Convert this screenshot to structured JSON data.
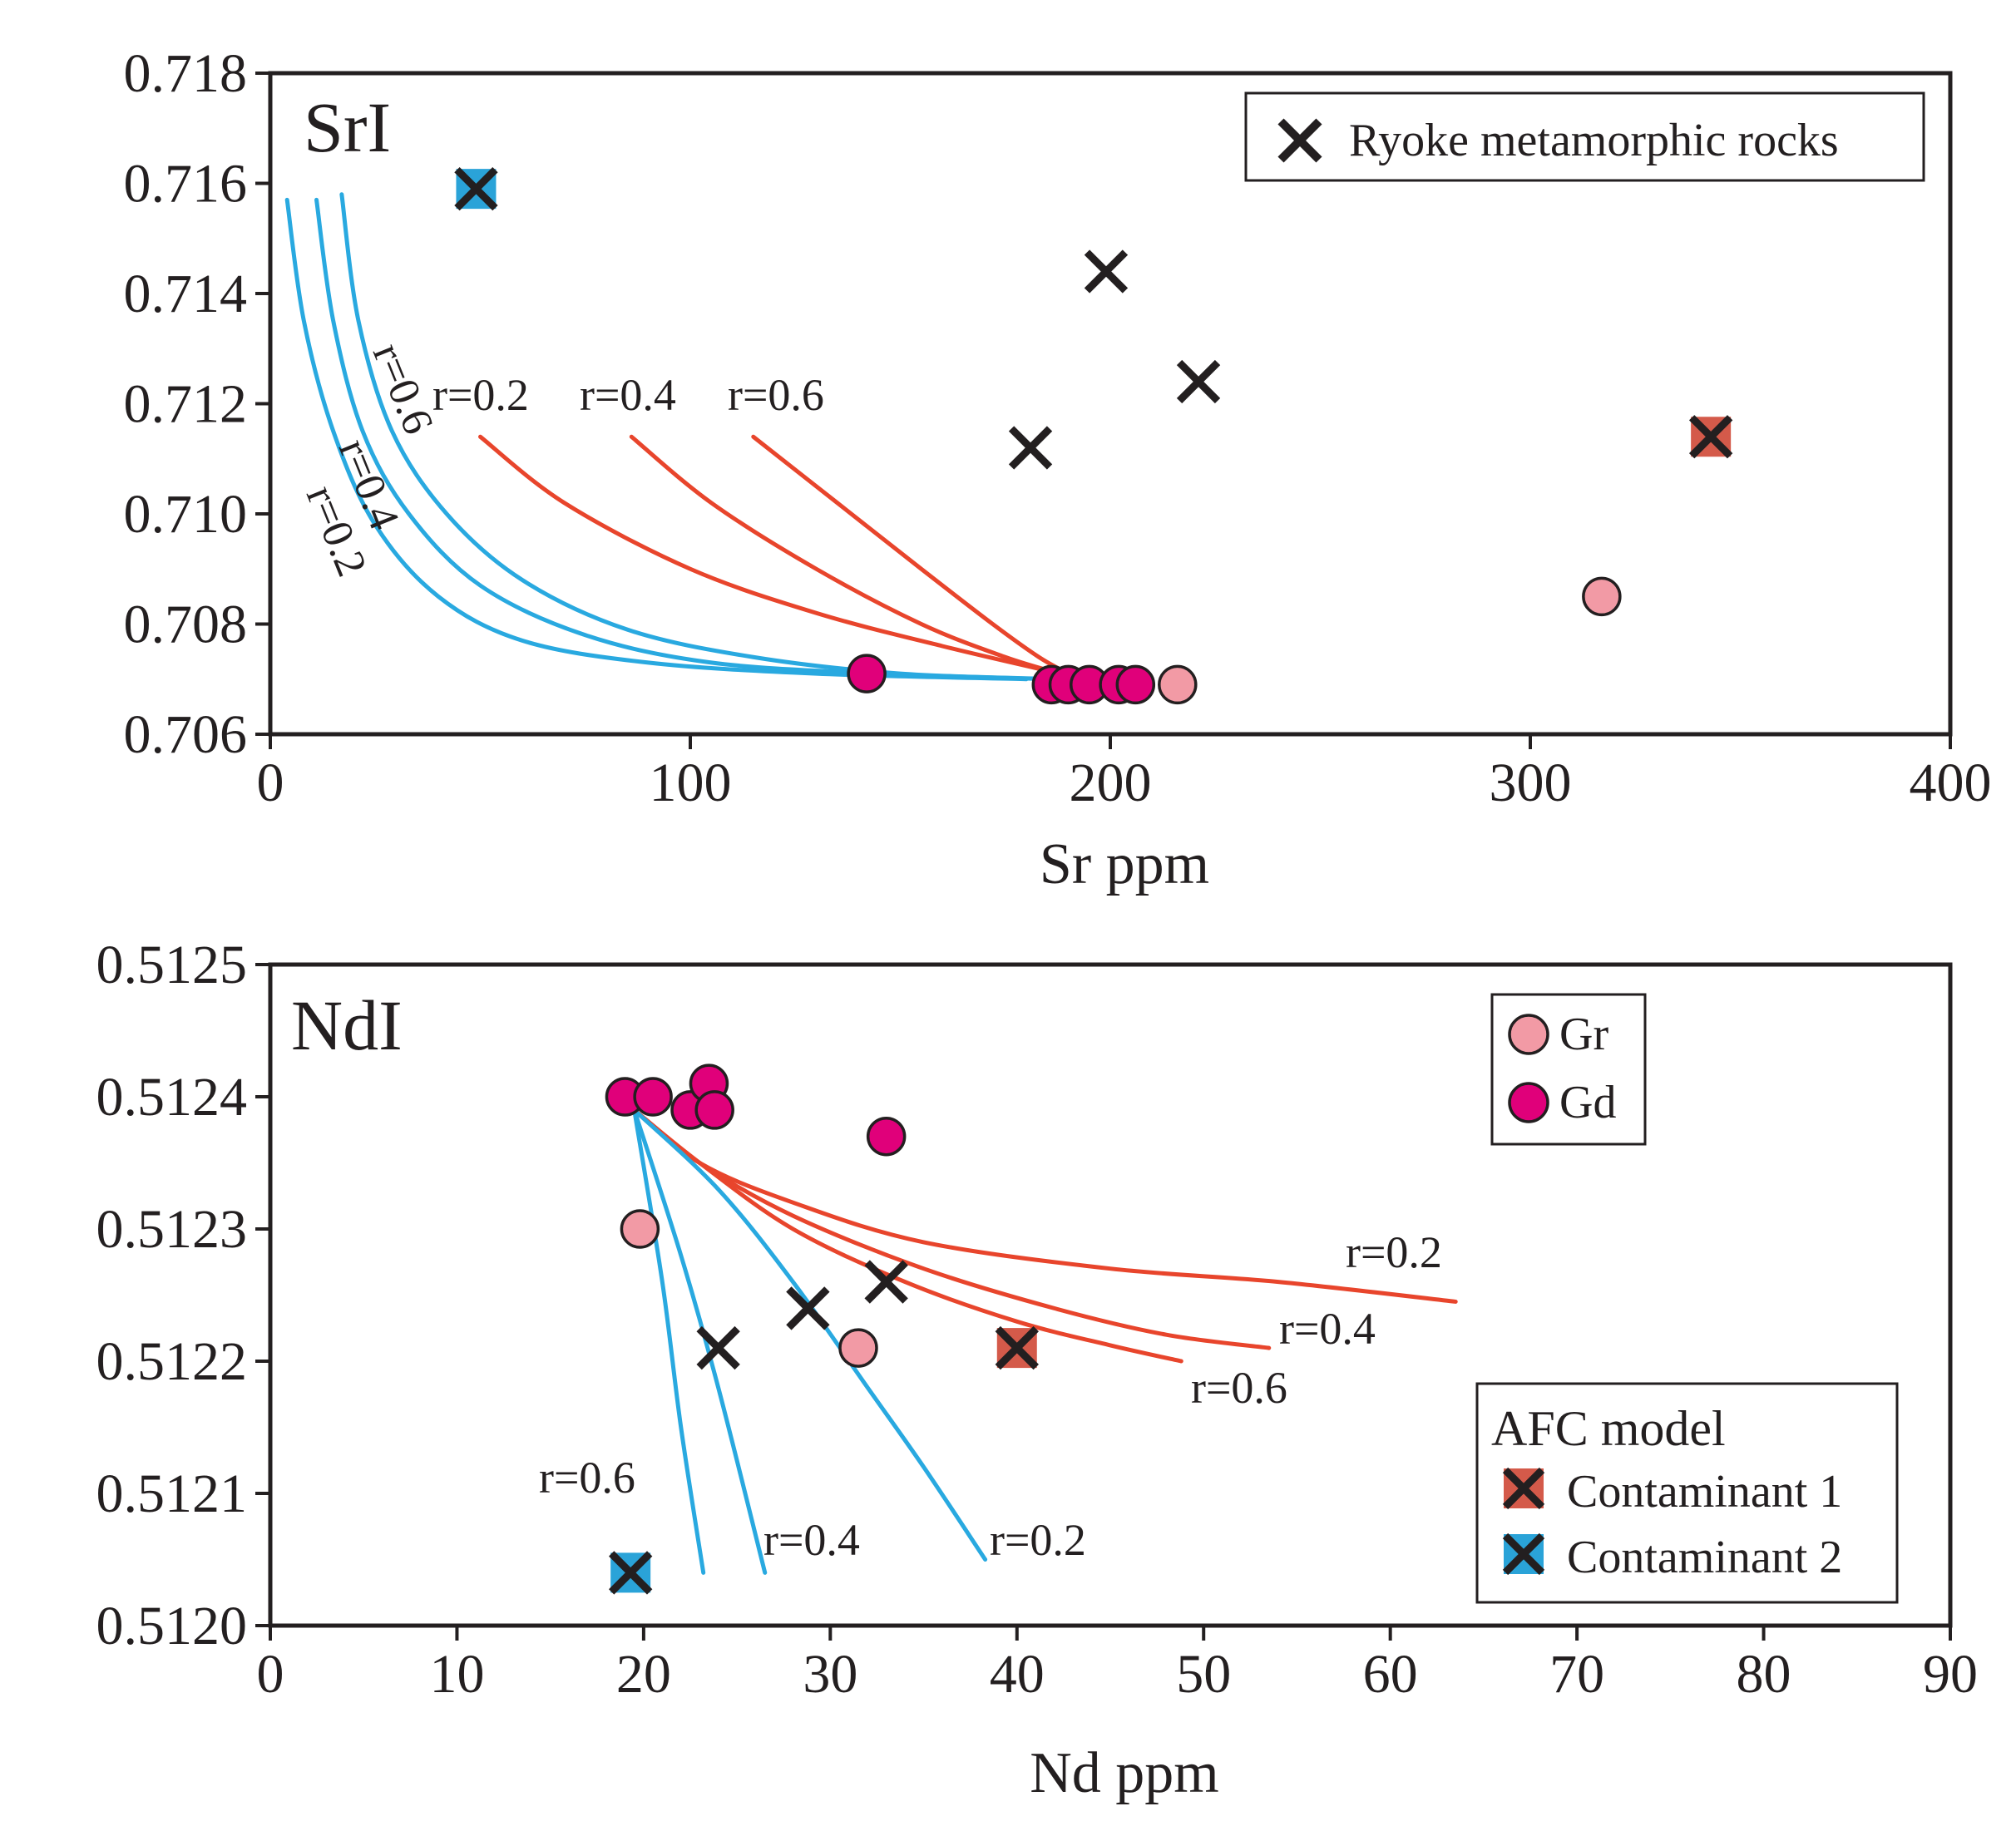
{
  "colors": {
    "axis": "#231f20",
    "gd_fill": "#e0007a",
    "gr_fill": "#f29aa5",
    "afc_red": "#e8452c",
    "afc_blue": "#29a9e0",
    "contaminant1_fill": "#d45a4a",
    "contaminant2_fill": "#2aa3d8",
    "cross": "#231f20"
  },
  "chart_data": [
    {
      "id": "sr",
      "type": "scatter",
      "title": "SrI",
      "xlabel": "Sr ppm",
      "ylabel": "",
      "xlim": [
        0,
        400
      ],
      "ylim": [
        0.706,
        0.718
      ],
      "xticks": [
        0,
        100,
        200,
        300,
        400
      ],
      "xtick_labels": [
        "0",
        "100",
        "200",
        "300",
        "400"
      ],
      "yticks": [
        0.706,
        0.708,
        0.71,
        0.712,
        0.714,
        0.716,
        0.718
      ],
      "ytick_labels": [
        "0.706",
        "0.708",
        "0.710",
        "0.712",
        "0.714",
        "0.716",
        "0.718"
      ],
      "legend": {
        "position": "top-right",
        "entries": [
          "Ryoke metamorphic rocks"
        ]
      },
      "series": [
        {
          "name": "Gd",
          "marker": "circle",
          "color": "#e0007a",
          "points": [
            [
              142,
              0.7071
            ],
            [
              186,
              0.7069
            ],
            [
              190,
              0.7069
            ],
            [
              195,
              0.7069
            ],
            [
              202,
              0.7069
            ],
            [
              206,
              0.7069
            ]
          ]
        },
        {
          "name": "Gr",
          "marker": "circle",
          "color": "#f29aa5",
          "points": [
            [
              216,
              0.7069
            ],
            [
              317,
              0.7085
            ]
          ]
        },
        {
          "name": "Ryoke metamorphic rocks",
          "marker": "x",
          "points": [
            [
              199,
              0.7144
            ],
            [
              221,
              0.7124
            ],
            [
              181,
              0.7112
            ]
          ]
        },
        {
          "name": "Contaminant 1",
          "marker": "x-square",
          "color": "#d45a4a",
          "points": [
            [
              343,
              0.7114
            ]
          ]
        },
        {
          "name": "Contaminant 2",
          "marker": "x-square",
          "color": "#2aa3d8",
          "points": [
            [
              49,
              0.7159
            ]
          ]
        }
      ],
      "curves": [
        {
          "label": "r=0.2",
          "contaminant": 1,
          "color": "#e8452c",
          "points": [
            [
              50,
              0.7114
            ],
            [
              70,
              0.7102
            ],
            [
              100,
              0.709
            ],
            [
              130,
              0.7082
            ],
            [
              160,
              0.7076
            ],
            [
              188,
              0.7071
            ]
          ]
        },
        {
          "label": "r=0.4",
          "contaminant": 1,
          "color": "#e8452c",
          "points": [
            [
              86,
              0.7114
            ],
            [
              105,
              0.7102
            ],
            [
              130,
              0.709
            ],
            [
              155,
              0.708
            ],
            [
              175,
              0.7074
            ],
            [
              188,
              0.7071
            ]
          ]
        },
        {
          "label": "r=0.6",
          "contaminant": 1,
          "color": "#e8452c",
          "points": [
            [
              115,
              0.7114
            ],
            [
              135,
              0.7102
            ],
            [
              155,
              0.709
            ],
            [
              172,
              0.708
            ],
            [
              183,
              0.7074
            ],
            [
              190,
              0.7071
            ]
          ]
        },
        {
          "label": "r=0.2",
          "contaminant": 2,
          "color": "#29a9e0",
          "points": [
            [
              4,
              0.7157
            ],
            [
              8,
              0.7135
            ],
            [
              15,
              0.7115
            ],
            [
              25,
              0.7098
            ],
            [
              40,
              0.7085
            ],
            [
              60,
              0.7077
            ],
            [
              90,
              0.7073
            ],
            [
              130,
              0.7071
            ],
            [
              180,
              0.707
            ]
          ]
        },
        {
          "label": "r=0.4",
          "contaminant": 2,
          "color": "#29a9e0",
          "points": [
            [
              11,
              0.7157
            ],
            [
              15,
              0.7135
            ],
            [
              22,
              0.7115
            ],
            [
              33,
              0.71
            ],
            [
              50,
              0.7087
            ],
            [
              75,
              0.7078
            ],
            [
              105,
              0.7073
            ],
            [
              145,
              0.7071
            ],
            [
              185,
              0.707
            ]
          ]
        },
        {
          "label": "r=0.6",
          "contaminant": 2,
          "color": "#29a9e0",
          "points": [
            [
              17,
              0.7158
            ],
            [
              21,
              0.7135
            ],
            [
              29,
              0.7115
            ],
            [
              42,
              0.71
            ],
            [
              60,
              0.7088
            ],
            [
              85,
              0.7079
            ],
            [
              115,
              0.7074
            ],
            [
              150,
              0.7071
            ],
            [
              188,
              0.707
            ]
          ]
        }
      ],
      "annotations": [
        "r=0.2",
        "r=0.4",
        "r=0.6",
        "r=0.6",
        "r=0.4",
        "r=0.2"
      ]
    },
    {
      "id": "nd",
      "type": "scatter",
      "title": "NdI",
      "xlabel": "Nd ppm",
      "ylabel": "",
      "xlim": [
        0,
        90
      ],
      "ylim": [
        0.512,
        0.5125
      ],
      "xticks": [
        0,
        10,
        20,
        30,
        40,
        50,
        60,
        70,
        80,
        90
      ],
      "xtick_labels": [
        "0",
        "10",
        "20",
        "30",
        "40",
        "50",
        "60",
        "70",
        "80",
        "90"
      ],
      "yticks": [
        0.512,
        0.5121,
        0.5122,
        0.5123,
        0.5124,
        0.5125
      ],
      "ytick_labels": [
        "0.5120",
        "0.5121",
        "0.5122",
        "0.5123",
        "0.5124",
        "0.5125"
      ],
      "legend": {
        "position": "top-right",
        "entries": [
          "Gr",
          "Gd"
        ],
        "afc_title": "AFC model",
        "afc_entries": [
          "Contaminant 1",
          "Contaminant 2"
        ]
      },
      "series": [
        {
          "name": "Gd",
          "marker": "circle",
          "color": "#e0007a",
          "points": [
            [
              19.0,
              0.5124
            ],
            [
              20.5,
              0.5124
            ],
            [
              22.5,
              0.51239
            ],
            [
              23.5,
              0.51241
            ],
            [
              23.8,
              0.51239
            ],
            [
              33.0,
              0.51237
            ]
          ]
        },
        {
          "name": "Gr",
          "marker": "circle",
          "color": "#f29aa5",
          "points": [
            [
              19.8,
              0.5123
            ],
            [
              31.5,
              0.51221
            ]
          ]
        },
        {
          "name": "Ryoke metamorphic rocks",
          "marker": "x",
          "points": [
            [
              24.0,
              0.51221
            ],
            [
              28.8,
              0.51224
            ],
            [
              33.0,
              0.51226
            ]
          ]
        },
        {
          "name": "Contaminant 1",
          "marker": "x-square",
          "color": "#d45a4a",
          "points": [
            [
              40.0,
              0.51221
            ]
          ]
        },
        {
          "name": "Contaminant 2",
          "marker": "x-square",
          "color": "#2aa3d8",
          "points": [
            [
              19.3,
              0.51204
            ]
          ]
        }
      ],
      "curves": [
        {
          "label": "r=0.2",
          "contaminant": 1,
          "color": "#e8452c",
          "points": [
            [
              19.5,
              0.51239
            ],
            [
              23,
              0.51235
            ],
            [
              28,
              0.51232
            ],
            [
              35,
              0.51229
            ],
            [
              45,
              0.51227
            ],
            [
              54,
              0.51226
            ],
            [
              63.5,
              0.512245
            ]
          ]
        },
        {
          "label": "r=0.4",
          "contaminant": 1,
          "color": "#e8452c",
          "points": [
            [
              19.5,
              0.51239
            ],
            [
              23,
              0.51235
            ],
            [
              28,
              0.51231
            ],
            [
              35,
              0.51227
            ],
            [
              42,
              0.51224
            ],
            [
              48,
              0.51222
            ],
            [
              53.5,
              0.51221
            ]
          ]
        },
        {
          "label": "r=0.6",
          "contaminant": 1,
          "color": "#e8452c",
          "points": [
            [
              19.5,
              0.51239
            ],
            [
              23,
              0.51235
            ],
            [
              28,
              0.5123
            ],
            [
              34,
              0.51226
            ],
            [
              40,
              0.51223
            ],
            [
              45,
              0.512212
            ],
            [
              48.8,
              0.5122
            ]
          ]
        },
        {
          "label": "r=0.2",
          "contaminant": 2,
          "color": "#29a9e0",
          "points": [
            [
              19.5,
              0.51239
            ],
            [
              24,
              0.51233
            ],
            [
              28,
              0.51226
            ],
            [
              32,
              0.51218
            ],
            [
              35,
              0.51212
            ],
            [
              38.3,
              0.51205
            ]
          ]
        },
        {
          "label": "r=0.4",
          "contaminant": 2,
          "color": "#29a9e0",
          "points": [
            [
              19.5,
              0.51239
            ],
            [
              22,
              0.51228
            ],
            [
              24,
              0.51218
            ],
            [
              26.5,
              0.51204
            ]
          ]
        },
        {
          "label": "r=0.6",
          "contaminant": 2,
          "color": "#29a9e0",
          "points": [
            [
              19.5,
              0.51239
            ],
            [
              21,
              0.51226
            ],
            [
              22,
              0.51215
            ],
            [
              23.2,
              0.51204
            ]
          ]
        }
      ],
      "annotations": [
        "r=0.2",
        "r=0.4",
        "r=0.6",
        "r=0.6",
        "r=0.4",
        "r=0.2"
      ]
    }
  ]
}
